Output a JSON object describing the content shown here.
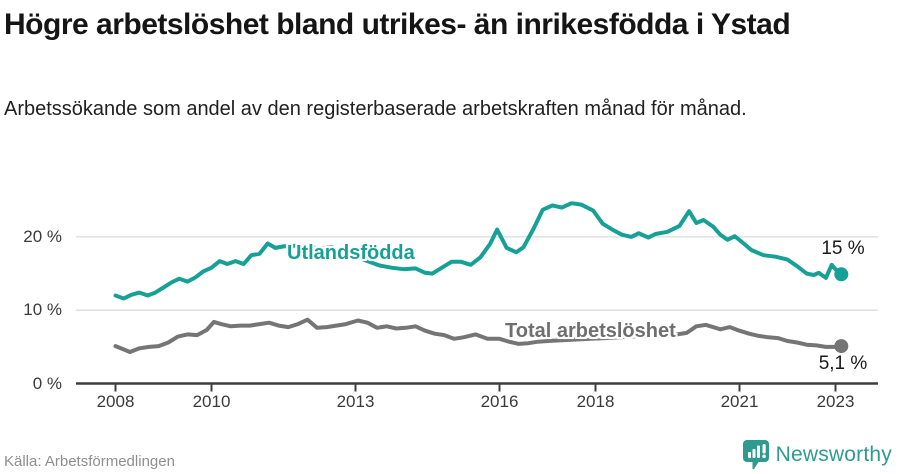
{
  "header": {
    "title": "Högre arbetslöshet bland utrikes- än inrikesfödda i Ystad",
    "subtitle": "Arbetssökande som andel av den registerbaserade arbetskraften månad för månad."
  },
  "footer": {
    "source": "Källa: Arbetsförmedlingen",
    "brand": "Newsworthy"
  },
  "colors": {
    "accent_teal": "#16A096",
    "series_gray": "#757575",
    "grid": "#DBDBDB",
    "axis": "#3D3D3D",
    "text_dark": "#1A1A1A",
    "brand_teal": "#2E9A90"
  },
  "chart_data": {
    "type": "line",
    "unit": "%",
    "title": "Högre arbetslöshet bland utrikes- än inrikesfödda i Ystad",
    "xlabel": "",
    "ylabel": "Arbetssökande som andel av den registerbaserade arbetskraften",
    "x_range": [
      2008,
      2023.2
    ],
    "ylim": [
      0,
      26.5
    ],
    "grid": "horizontal",
    "legend_position": "inline",
    "yticks": [
      {
        "value": 0,
        "label": "0 %"
      },
      {
        "value": 10,
        "label": "10 %"
      },
      {
        "value": 20,
        "label": "20 %"
      }
    ],
    "xtick_labels": [
      "2008",
      "2010",
      "2013",
      "2016",
      "2018",
      "2021",
      "2023"
    ],
    "series": [
      {
        "name": "Utlandsfödda",
        "color": "#16A096",
        "end_label": "15 %",
        "end_value": 15.0,
        "points": [
          [
            2008.0,
            12.0
          ],
          [
            2008.17,
            11.6
          ],
          [
            2008.33,
            12.1
          ],
          [
            2008.5,
            12.4
          ],
          [
            2008.67,
            12.0
          ],
          [
            2008.83,
            12.4
          ],
          [
            2009.0,
            13.1
          ],
          [
            2009.17,
            13.8
          ],
          [
            2009.33,
            14.3
          ],
          [
            2009.5,
            13.9
          ],
          [
            2009.67,
            14.5
          ],
          [
            2009.83,
            15.3
          ],
          [
            2010.0,
            15.8
          ],
          [
            2010.17,
            16.7
          ],
          [
            2010.33,
            16.3
          ],
          [
            2010.5,
            16.7
          ],
          [
            2010.67,
            16.3
          ],
          [
            2010.83,
            17.5
          ],
          [
            2011.0,
            17.7
          ],
          [
            2011.17,
            19.1
          ],
          [
            2011.33,
            18.5
          ],
          [
            2011.5,
            18.7
          ],
          [
            2011.75,
            18.8
          ],
          [
            2012.0,
            18.7
          ],
          [
            2012.25,
            18.4
          ],
          [
            2012.5,
            18.6
          ],
          [
            2012.75,
            18.0
          ],
          [
            2013.0,
            17.4
          ],
          [
            2013.25,
            16.7
          ],
          [
            2013.5,
            16.1
          ],
          [
            2013.75,
            15.8
          ],
          [
            2014.0,
            15.6
          ],
          [
            2014.25,
            15.7
          ],
          [
            2014.45,
            15.1
          ],
          [
            2014.6,
            15.0
          ],
          [
            2014.8,
            15.8
          ],
          [
            2015.0,
            16.6
          ],
          [
            2015.2,
            16.6
          ],
          [
            2015.4,
            16.2
          ],
          [
            2015.6,
            17.2
          ],
          [
            2015.8,
            19.0
          ],
          [
            2015.95,
            21.0
          ],
          [
            2016.15,
            18.5
          ],
          [
            2016.35,
            17.9
          ],
          [
            2016.5,
            18.6
          ],
          [
            2016.7,
            21.0
          ],
          [
            2016.9,
            23.7
          ],
          [
            2017.1,
            24.3
          ],
          [
            2017.3,
            24.0
          ],
          [
            2017.5,
            24.6
          ],
          [
            2017.7,
            24.4
          ],
          [
            2017.95,
            23.6
          ],
          [
            2018.15,
            21.8
          ],
          [
            2018.35,
            21.0
          ],
          [
            2018.55,
            20.3
          ],
          [
            2018.75,
            20.0
          ],
          [
            2018.9,
            20.5
          ],
          [
            2019.1,
            19.9
          ],
          [
            2019.25,
            20.4
          ],
          [
            2019.5,
            20.7
          ],
          [
            2019.75,
            21.5
          ],
          [
            2019.95,
            23.5
          ],
          [
            2020.1,
            21.9
          ],
          [
            2020.25,
            22.3
          ],
          [
            2020.45,
            21.4
          ],
          [
            2020.6,
            20.3
          ],
          [
            2020.75,
            19.6
          ],
          [
            2020.9,
            20.1
          ],
          [
            2021.05,
            19.3
          ],
          [
            2021.25,
            18.2
          ],
          [
            2021.5,
            17.5
          ],
          [
            2021.75,
            17.3
          ],
          [
            2022.0,
            16.9
          ],
          [
            2022.2,
            16.0
          ],
          [
            2022.4,
            15.0
          ],
          [
            2022.55,
            14.8
          ],
          [
            2022.65,
            15.1
          ],
          [
            2022.8,
            14.4
          ],
          [
            2022.92,
            16.2
          ],
          [
            2023.05,
            15.2
          ],
          [
            2023.12,
            14.9
          ]
        ]
      },
      {
        "name": "Total arbetslöshet",
        "color": "#757575",
        "end_label": "5,1 %",
        "end_value": 5.1,
        "points": [
          [
            2008.0,
            5.1
          ],
          [
            2008.15,
            4.7
          ],
          [
            2008.3,
            4.3
          ],
          [
            2008.5,
            4.8
          ],
          [
            2008.7,
            5.0
          ],
          [
            2008.9,
            5.1
          ],
          [
            2009.1,
            5.6
          ],
          [
            2009.3,
            6.4
          ],
          [
            2009.5,
            6.7
          ],
          [
            2009.7,
            6.6
          ],
          [
            2009.9,
            7.3
          ],
          [
            2010.05,
            8.4
          ],
          [
            2010.2,
            8.1
          ],
          [
            2010.4,
            7.8
          ],
          [
            2010.6,
            7.9
          ],
          [
            2010.8,
            7.9
          ],
          [
            2011.0,
            8.1
          ],
          [
            2011.2,
            8.3
          ],
          [
            2011.4,
            7.9
          ],
          [
            2011.6,
            7.7
          ],
          [
            2011.8,
            8.1
          ],
          [
            2012.0,
            8.7
          ],
          [
            2012.2,
            7.6
          ],
          [
            2012.4,
            7.7
          ],
          [
            2012.6,
            7.9
          ],
          [
            2012.8,
            8.1
          ],
          [
            2013.05,
            8.6
          ],
          [
            2013.25,
            8.3
          ],
          [
            2013.45,
            7.6
          ],
          [
            2013.65,
            7.8
          ],
          [
            2013.85,
            7.5
          ],
          [
            2014.05,
            7.6
          ],
          [
            2014.25,
            7.8
          ],
          [
            2014.45,
            7.2
          ],
          [
            2014.65,
            6.8
          ],
          [
            2014.85,
            6.6
          ],
          [
            2015.05,
            6.1
          ],
          [
            2015.25,
            6.3
          ],
          [
            2015.5,
            6.7
          ],
          [
            2015.75,
            6.1
          ],
          [
            2016.0,
            6.1
          ],
          [
            2016.2,
            5.7
          ],
          [
            2016.4,
            5.4
          ],
          [
            2016.6,
            5.5
          ],
          [
            2016.8,
            5.7
          ],
          [
            2017.0,
            5.8
          ],
          [
            2017.3,
            5.9
          ],
          [
            2017.6,
            6.0
          ],
          [
            2017.9,
            6.1
          ],
          [
            2018.2,
            6.2
          ],
          [
            2018.5,
            6.3
          ],
          [
            2018.8,
            6.4
          ],
          [
            2019.1,
            6.5
          ],
          [
            2019.4,
            6.6
          ],
          [
            2019.7,
            6.7
          ],
          [
            2019.9,
            6.9
          ],
          [
            2020.1,
            7.8
          ],
          [
            2020.3,
            8.0
          ],
          [
            2020.45,
            7.7
          ],
          [
            2020.6,
            7.4
          ],
          [
            2020.8,
            7.7
          ],
          [
            2021.0,
            7.2
          ],
          [
            2021.2,
            6.8
          ],
          [
            2021.4,
            6.5
          ],
          [
            2021.6,
            6.3
          ],
          [
            2021.8,
            6.2
          ],
          [
            2022.0,
            5.8
          ],
          [
            2022.2,
            5.6
          ],
          [
            2022.4,
            5.3
          ],
          [
            2022.6,
            5.2
          ],
          [
            2022.8,
            5.0
          ],
          [
            2023.0,
            5.0
          ],
          [
            2023.12,
            5.1
          ]
        ]
      }
    ]
  }
}
